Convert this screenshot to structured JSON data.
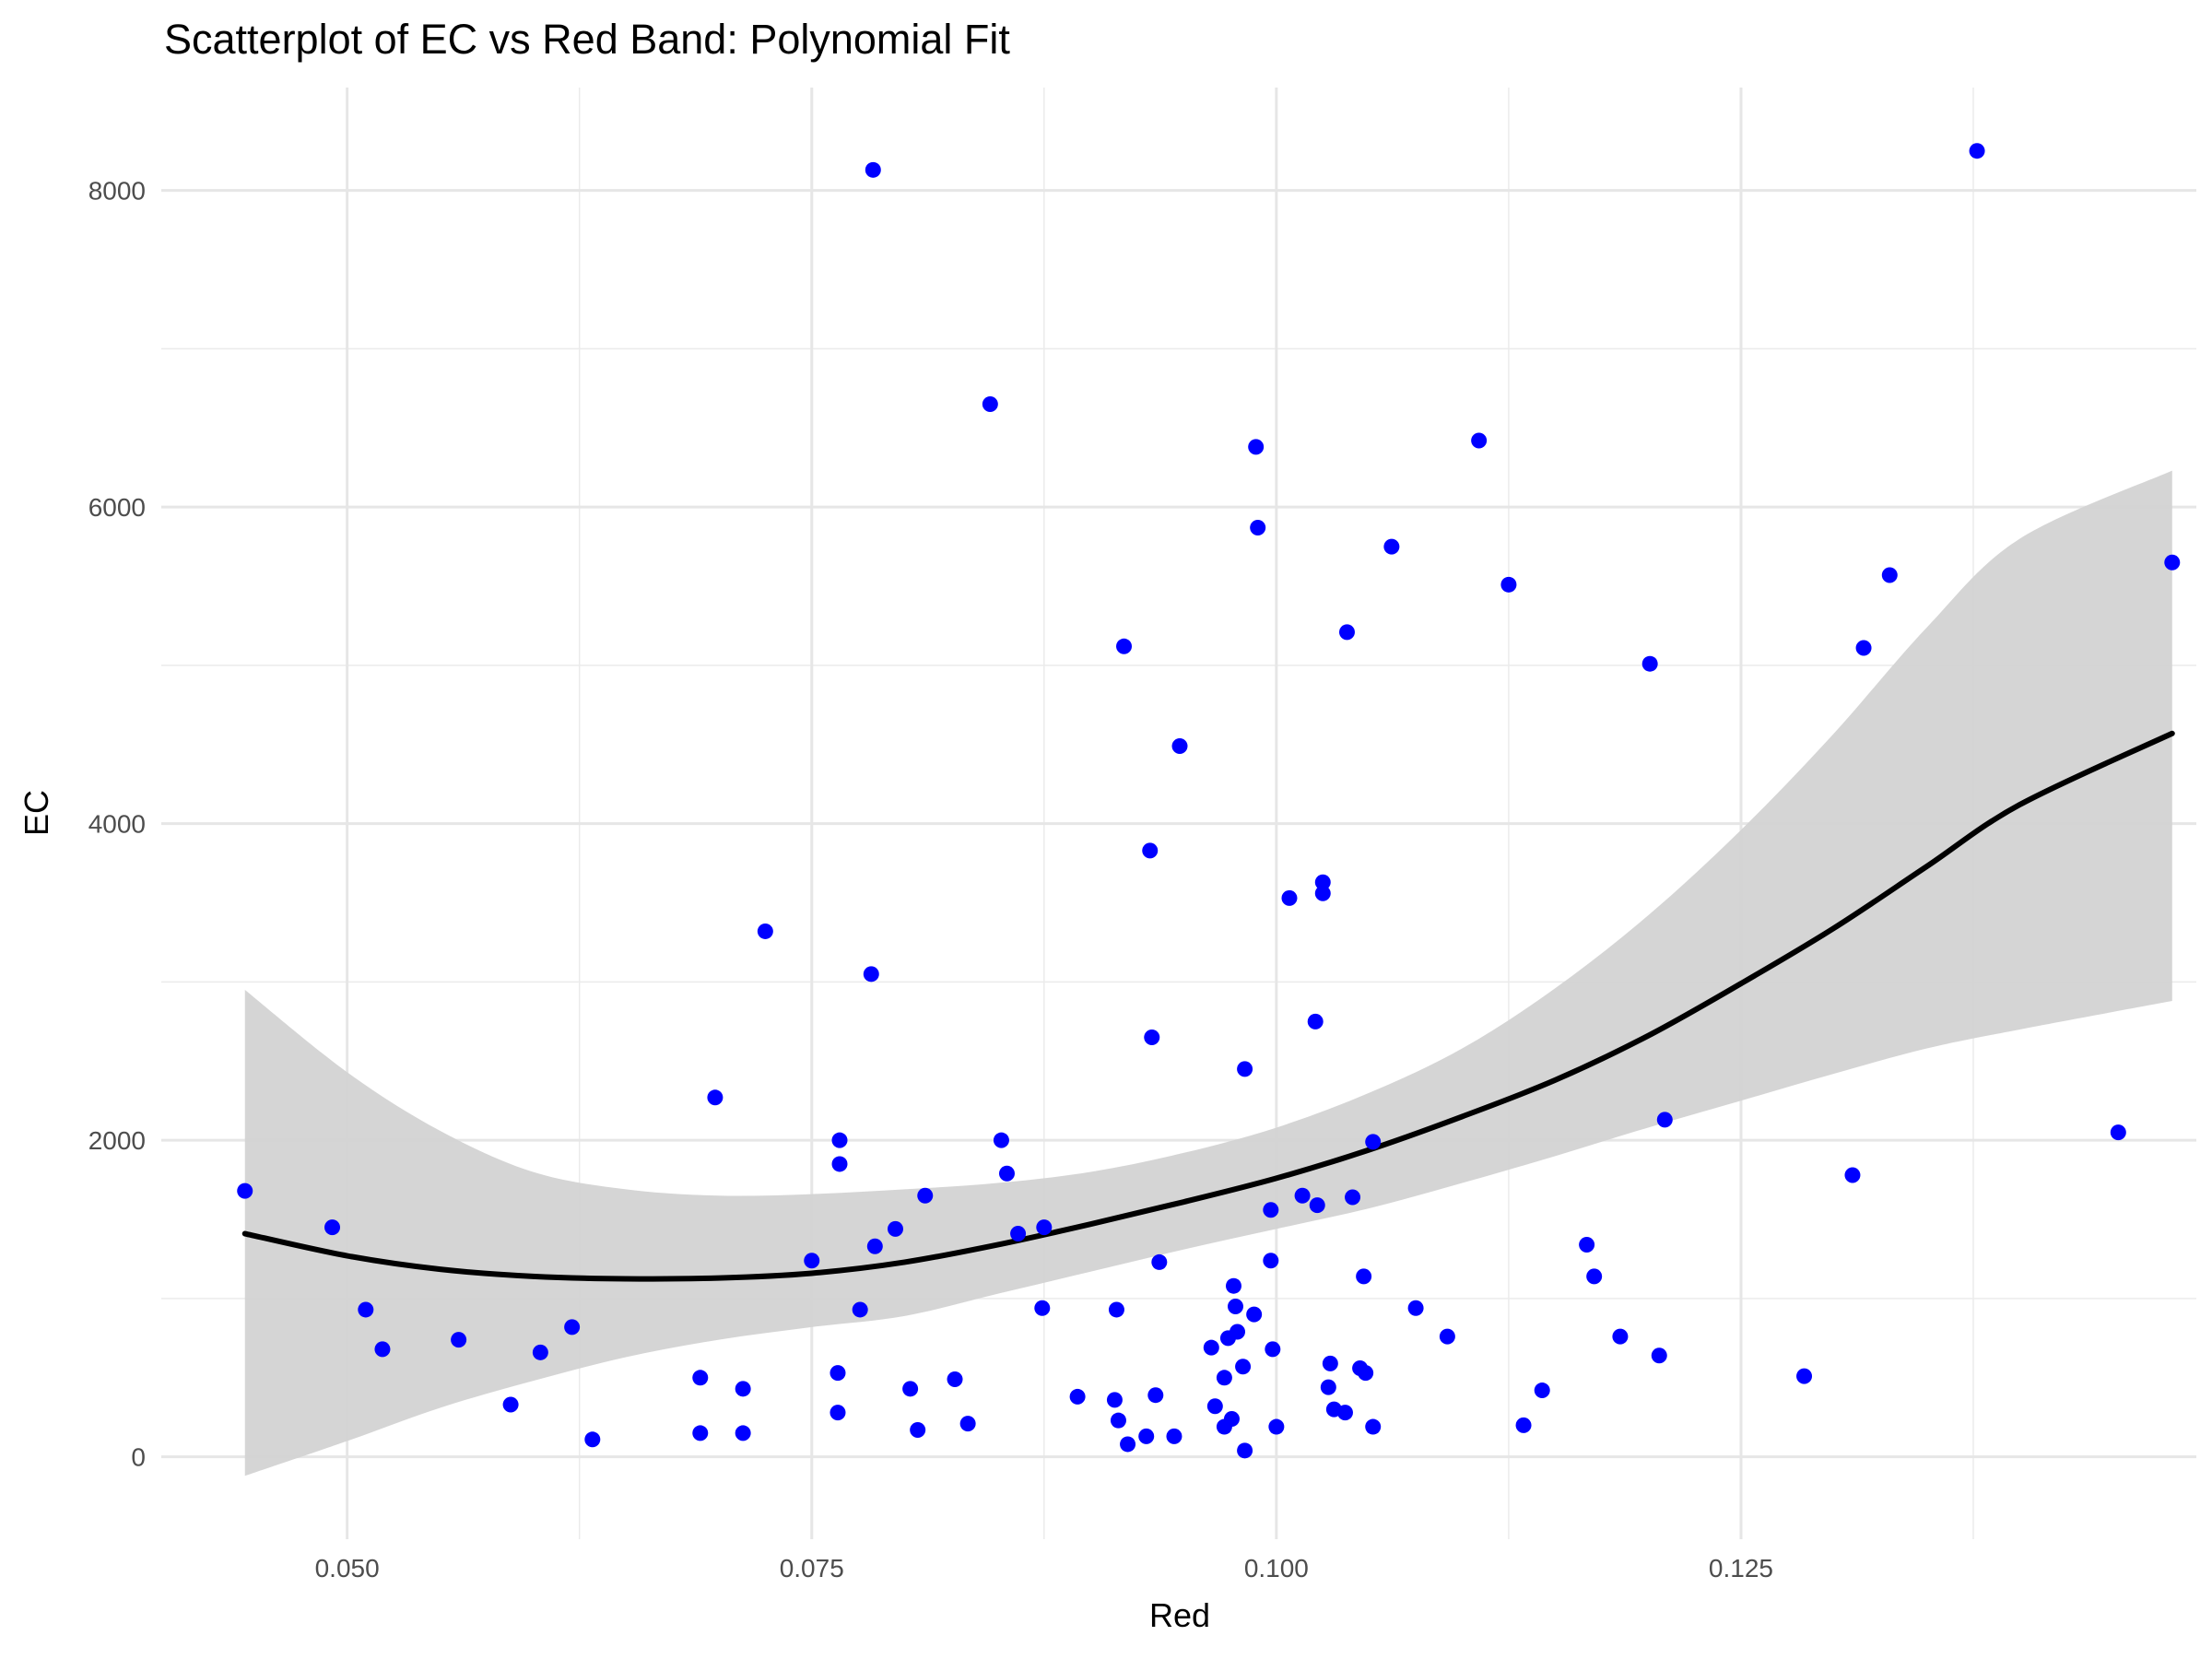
{
  "chart_data": {
    "type": "scatter",
    "title": "Scatterplot of EC vs Red Band: Polynomial Fit",
    "xlabel": "Red",
    "ylabel": "EC",
    "xlim": [
      0.04,
      0.1495
    ],
    "ylim": [
      -520,
      8650
    ],
    "x_ticks": [
      0.05,
      0.075,
      0.1,
      0.125
    ],
    "x_tick_labels": [
      "0.050",
      "0.075",
      "0.100",
      "0.125"
    ],
    "y_ticks": [
      0,
      2000,
      4000,
      6000,
      8000
    ],
    "y_tick_labels": [
      "0",
      "2000",
      "4000",
      "6000",
      "8000"
    ],
    "grid": true,
    "legend": "none",
    "point_color": "#0000ff",
    "fit_color": "#000000",
    "band_color": "#d3d3d3",
    "points": [
      {
        "x": 0.0445,
        "y": 1680
      },
      {
        "x": 0.0492,
        "y": 1450
      },
      {
        "x": 0.051,
        "y": 930
      },
      {
        "x": 0.0519,
        "y": 680
      },
      {
        "x": 0.056,
        "y": 740
      },
      {
        "x": 0.0588,
        "y": 330
      },
      {
        "x": 0.0604,
        "y": 660
      },
      {
        "x": 0.0621,
        "y": 820
      },
      {
        "x": 0.0632,
        "y": 110
      },
      {
        "x": 0.069,
        "y": 500
      },
      {
        "x": 0.069,
        "y": 150
      },
      {
        "x": 0.0698,
        "y": 2270
      },
      {
        "x": 0.0713,
        "y": 150
      },
      {
        "x": 0.0713,
        "y": 430
      },
      {
        "x": 0.0725,
        "y": 3320
      },
      {
        "x": 0.075,
        "y": 1240
      },
      {
        "x": 0.0764,
        "y": 530
      },
      {
        "x": 0.0764,
        "y": 280
      },
      {
        "x": 0.0765,
        "y": 2000
      },
      {
        "x": 0.0765,
        "y": 1850
      },
      {
        "x": 0.0776,
        "y": 930
      },
      {
        "x": 0.0782,
        "y": 3050
      },
      {
        "x": 0.0783,
        "y": 8130
      },
      {
        "x": 0.0784,
        "y": 1330
      },
      {
        "x": 0.0795,
        "y": 1440
      },
      {
        "x": 0.0803,
        "y": 430
      },
      {
        "x": 0.0807,
        "y": 170
      },
      {
        "x": 0.0811,
        "y": 1650
      },
      {
        "x": 0.0827,
        "y": 490
      },
      {
        "x": 0.0834,
        "y": 210
      },
      {
        "x": 0.0846,
        "y": 6650
      },
      {
        "x": 0.0852,
        "y": 2000
      },
      {
        "x": 0.0855,
        "y": 1790
      },
      {
        "x": 0.0861,
        "y": 1410
      },
      {
        "x": 0.0874,
        "y": 940
      },
      {
        "x": 0.0875,
        "y": 1450
      },
      {
        "x": 0.0893,
        "y": 380
      },
      {
        "x": 0.0913,
        "y": 360
      },
      {
        "x": 0.0914,
        "y": 930
      },
      {
        "x": 0.0915,
        "y": 230
      },
      {
        "x": 0.0918,
        "y": 5120
      },
      {
        "x": 0.092,
        "y": 80
      },
      {
        "x": 0.093,
        "y": 130
      },
      {
        "x": 0.0932,
        "y": 3830
      },
      {
        "x": 0.0933,
        "y": 2650
      },
      {
        "x": 0.0935,
        "y": 390
      },
      {
        "x": 0.0937,
        "y": 1230
      },
      {
        "x": 0.0945,
        "y": 130
      },
      {
        "x": 0.0948,
        "y": 4490
      },
      {
        "x": 0.0965,
        "y": 690
      },
      {
        "x": 0.0967,
        "y": 320
      },
      {
        "x": 0.0972,
        "y": 500
      },
      {
        "x": 0.0972,
        "y": 190
      },
      {
        "x": 0.0974,
        "y": 750
      },
      {
        "x": 0.0976,
        "y": 240
      },
      {
        "x": 0.0977,
        "y": 1080
      },
      {
        "x": 0.0978,
        "y": 950
      },
      {
        "x": 0.0979,
        "y": 790
      },
      {
        "x": 0.0982,
        "y": 570
      },
      {
        "x": 0.0983,
        "y": 2450
      },
      {
        "x": 0.0983,
        "y": 40
      },
      {
        "x": 0.0988,
        "y": 900
      },
      {
        "x": 0.0989,
        "y": 6380
      },
      {
        "x": 0.099,
        "y": 5870
      },
      {
        "x": 0.0997,
        "y": 1240
      },
      {
        "x": 0.0997,
        "y": 1560
      },
      {
        "x": 0.0998,
        "y": 680
      },
      {
        "x": 0.1,
        "y": 190
      },
      {
        "x": 0.1007,
        "y": 3530
      },
      {
        "x": 0.1014,
        "y": 1650
      },
      {
        "x": 0.1021,
        "y": 2750
      },
      {
        "x": 0.1022,
        "y": 1590
      },
      {
        "x": 0.1025,
        "y": 3560
      },
      {
        "x": 0.1025,
        "y": 3630
      },
      {
        "x": 0.1028,
        "y": 440
      },
      {
        "x": 0.1029,
        "y": 590
      },
      {
        "x": 0.1031,
        "y": 300
      },
      {
        "x": 0.1037,
        "y": 280
      },
      {
        "x": 0.1038,
        "y": 5210
      },
      {
        "x": 0.1041,
        "y": 1640
      },
      {
        "x": 0.1045,
        "y": 560
      },
      {
        "x": 0.1047,
        "y": 1140
      },
      {
        "x": 0.1048,
        "y": 530
      },
      {
        "x": 0.1052,
        "y": 1990
      },
      {
        "x": 0.1052,
        "y": 190
      },
      {
        "x": 0.1062,
        "y": 5750
      },
      {
        "x": 0.1075,
        "y": 940
      },
      {
        "x": 0.1092,
        "y": 760
      },
      {
        "x": 0.1109,
        "y": 6420
      },
      {
        "x": 0.1125,
        "y": 5510
      },
      {
        "x": 0.1133,
        "y": 200
      },
      {
        "x": 0.1143,
        "y": 420
      },
      {
        "x": 0.1167,
        "y": 1340
      },
      {
        "x": 0.1171,
        "y": 1140
      },
      {
        "x": 0.1185,
        "y": 760
      },
      {
        "x": 0.1201,
        "y": 5010
      },
      {
        "x": 0.1206,
        "y": 640
      },
      {
        "x": 0.1209,
        "y": 2130
      },
      {
        "x": 0.1284,
        "y": 510
      },
      {
        "x": 0.131,
        "y": 1780
      },
      {
        "x": 0.1316,
        "y": 5110
      },
      {
        "x": 0.133,
        "y": 5570
      },
      {
        "x": 0.1377,
        "y": 8250
      },
      {
        "x": 0.1453,
        "y": 2050
      },
      {
        "x": 0.1482,
        "y": 5650
      }
    ],
    "fit": [
      {
        "x": 0.0445,
        "y": 1410,
        "lower": -120,
        "upper": 2950
      },
      {
        "x": 0.05,
        "y": 1270,
        "lower": 100,
        "upper": 2430
      },
      {
        "x": 0.055,
        "y": 1185,
        "lower": 310,
        "upper": 2060
      },
      {
        "x": 0.06,
        "y": 1140,
        "lower": 480,
        "upper": 1800
      },
      {
        "x": 0.065,
        "y": 1125,
        "lower": 630,
        "upper": 1690
      },
      {
        "x": 0.07,
        "y": 1130,
        "lower": 740,
        "upper": 1650
      },
      {
        "x": 0.075,
        "y": 1160,
        "lower": 820,
        "upper": 1660
      },
      {
        "x": 0.08,
        "y": 1230,
        "lower": 890,
        "upper": 1690
      },
      {
        "x": 0.085,
        "y": 1340,
        "lower": 1030,
        "upper": 1730
      },
      {
        "x": 0.09,
        "y": 1470,
        "lower": 1170,
        "upper": 1800
      },
      {
        "x": 0.095,
        "y": 1610,
        "lower": 1310,
        "upper": 1920
      },
      {
        "x": 0.1,
        "y": 1760,
        "lower": 1440,
        "upper": 2080
      },
      {
        "x": 0.105,
        "y": 1940,
        "lower": 1570,
        "upper": 2300
      },
      {
        "x": 0.11,
        "y": 2150,
        "lower": 1730,
        "upper": 2580
      },
      {
        "x": 0.115,
        "y": 2380,
        "lower": 1900,
        "upper": 2960
      },
      {
        "x": 0.12,
        "y": 2660,
        "lower": 2080,
        "upper": 3420
      },
      {
        "x": 0.125,
        "y": 2990,
        "lower": 2250,
        "upper": 3960
      },
      {
        "x": 0.13,
        "y": 3340,
        "lower": 2420,
        "upper": 4570
      },
      {
        "x": 0.135,
        "y": 3730,
        "lower": 2580,
        "upper": 5240
      },
      {
        "x": 0.14,
        "y": 4120,
        "lower": 2700,
        "upper": 5800
      },
      {
        "x": 0.1482,
        "y": 4570,
        "lower": 2880,
        "upper": 6230
      }
    ]
  }
}
